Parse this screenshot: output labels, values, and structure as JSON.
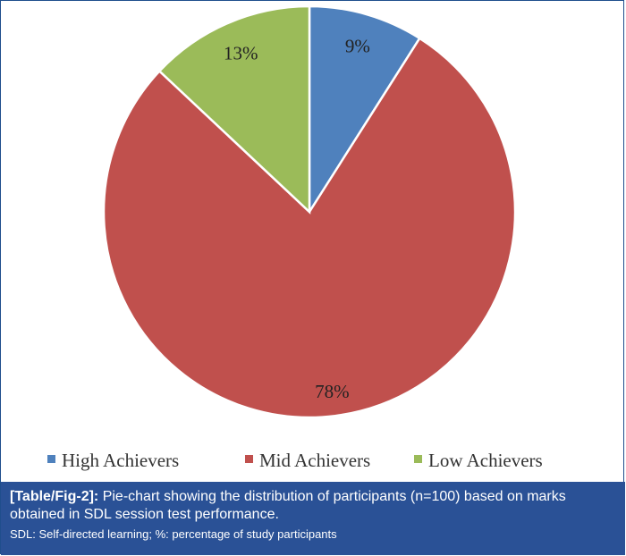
{
  "chart_data": {
    "type": "pie",
    "categories": [
      "High Achievers",
      "Mid Achievers",
      "Low Achievers"
    ],
    "values": [
      9,
      78,
      13
    ],
    "value_labels": [
      "9%",
      "78%",
      "13%"
    ],
    "colors": [
      "#4f81bd",
      "#c0504d",
      "#9bbb59"
    ],
    "start_angle_deg": 0,
    "direction": "clockwise",
    "legend": "bottom"
  },
  "caption": {
    "tag": "[Table/Fig-2]:",
    "text": "Pie-chart showing the distribution of participants (n=100) based on marks obtained in SDL session test performance.",
    "note": "SDL: Self-directed learning; %: percentage of study participants"
  }
}
